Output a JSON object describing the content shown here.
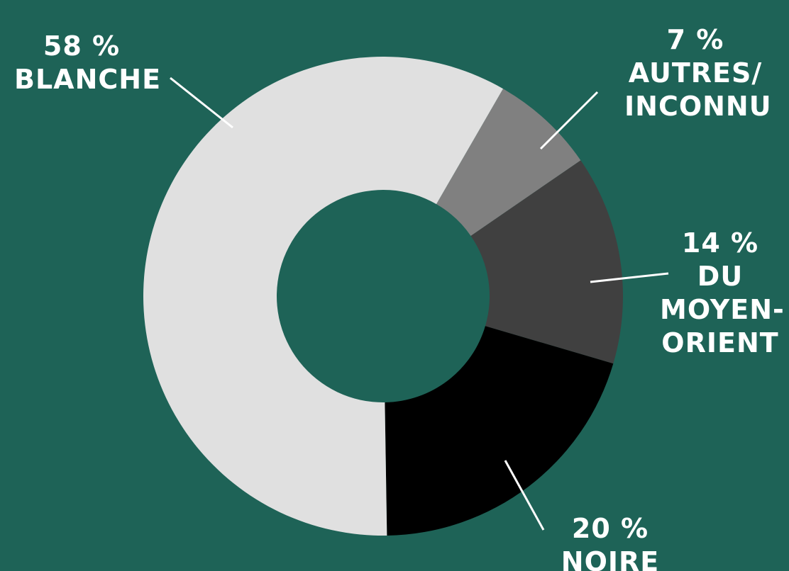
{
  "colors": {
    "background": "#1e6357",
    "label_text": "#ffffff",
    "leader_line": "#ffffff"
  },
  "chart_data": {
    "type": "pie",
    "variant": "donut",
    "title": "",
    "slices": [
      {
        "key": "autres",
        "value": 7,
        "value_label": "7 %",
        "label_lines": [
          "AUTRES/",
          "INCONNU"
        ],
        "color": "#808080"
      },
      {
        "key": "moyen_orient",
        "value": 14,
        "value_label": "14 %",
        "label_lines": [
          "DU",
          "MOYEN-",
          "ORIENT"
        ],
        "color": "#404040"
      },
      {
        "key": "noire",
        "value": 20,
        "value_label": "20 %",
        "label_lines": [
          "NOIRE"
        ],
        "color": "#000000"
      },
      {
        "key": "blanche",
        "value": 58,
        "value_label": "58 %",
        "label_lines": [
          "BLANCHE"
        ],
        "color": "#e0e0e0"
      }
    ]
  }
}
